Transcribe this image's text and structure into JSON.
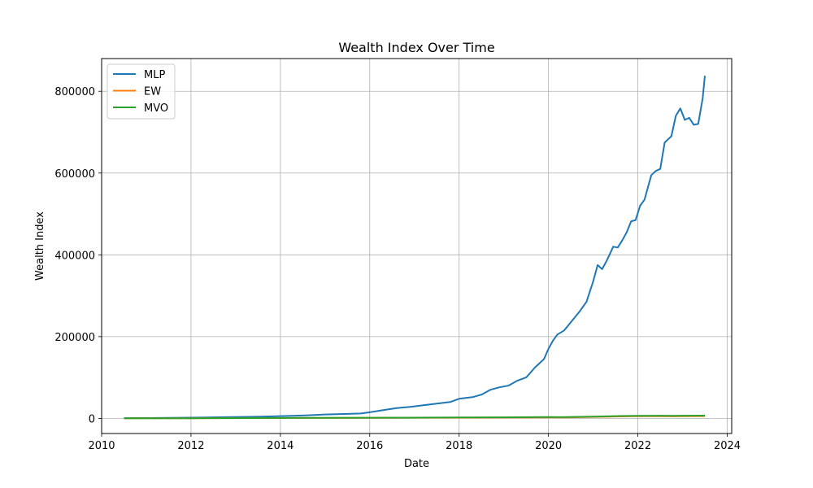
{
  "chart_data": {
    "type": "line",
    "title": "Wealth Index Over Time",
    "xlabel": "Date",
    "ylabel": "Wealth Index",
    "xlim": [
      2010.0,
      2024.1
    ],
    "ylim": [
      -37000,
      880000
    ],
    "xticks": [
      2010,
      2012,
      2014,
      2016,
      2018,
      2020,
      2022,
      2024
    ],
    "yticks": [
      0,
      200000,
      400000,
      600000,
      800000
    ],
    "grid": true,
    "legend_position": "top-left",
    "series": [
      {
        "name": "MLP",
        "color": "#1f77b4",
        "x": [
          2010.5,
          2011.0,
          2011.5,
          2012.0,
          2012.5,
          2013.0,
          2013.5,
          2014.0,
          2014.5,
          2015.0,
          2015.5,
          2015.8,
          2016.0,
          2016.3,
          2016.6,
          2016.9,
          2017.2,
          2017.5,
          2017.8,
          2018.0,
          2018.3,
          2018.5,
          2018.7,
          2018.9,
          2019.1,
          2019.3,
          2019.5,
          2019.7,
          2019.9,
          2020.0,
          2020.1,
          2020.2,
          2020.35,
          2020.5,
          2020.7,
          2020.85,
          2021.0,
          2021.1,
          2021.2,
          2021.3,
          2021.45,
          2021.55,
          2021.65,
          2021.75,
          2021.85,
          2021.95,
          2022.05,
          2022.15,
          2022.3,
          2022.4,
          2022.5,
          2022.6,
          2022.75,
          2022.85,
          2022.95,
          2023.05,
          2023.15,
          2023.25,
          2023.35,
          2023.45,
          2023.5
        ],
        "y": [
          500,
          800,
          1200,
          1800,
          2500,
          3200,
          4000,
          5500,
          7000,
          9500,
          11000,
          12000,
          15000,
          20000,
          25000,
          28000,
          32000,
          36000,
          40000,
          48000,
          52000,
          58000,
          70000,
          76000,
          80000,
          92000,
          100000,
          125000,
          145000,
          170000,
          190000,
          205000,
          215000,
          235000,
          262000,
          285000,
          335000,
          375000,
          365000,
          385000,
          420000,
          418000,
          435000,
          455000,
          482000,
          485000,
          520000,
          535000,
          595000,
          605000,
          610000,
          675000,
          690000,
          740000,
          758000,
          730000,
          735000,
          718000,
          720000,
          783000,
          838000
        ]
      },
      {
        "name": "EW",
        "color": "#ff7f0e",
        "x": [
          2010.5,
          2012.0,
          2014.0,
          2016.0,
          2018.0,
          2019.0,
          2020.0,
          2020.3,
          2021.0,
          2021.5,
          2022.0,
          2022.5,
          2022.8,
          2023.0,
          2023.5
        ],
        "y": [
          100,
          300,
          700,
          1200,
          1800,
          2000,
          2600,
          2300,
          3500,
          4500,
          5200,
          5400,
          5000,
          5300,
          5500
        ]
      },
      {
        "name": "MVO",
        "color": "#2ca02c",
        "x": [
          2010.5,
          2012.0,
          2014.0,
          2016.0,
          2018.0,
          2019.0,
          2020.0,
          2020.3,
          2021.0,
          2021.5,
          2022.0,
          2022.5,
          2022.8,
          2023.0,
          2023.5
        ],
        "y": [
          150,
          400,
          900,
          1500,
          2200,
          2500,
          3200,
          2900,
          4300,
          5500,
          6400,
          6600,
          6200,
          6500,
          6800
        ]
      }
    ]
  }
}
